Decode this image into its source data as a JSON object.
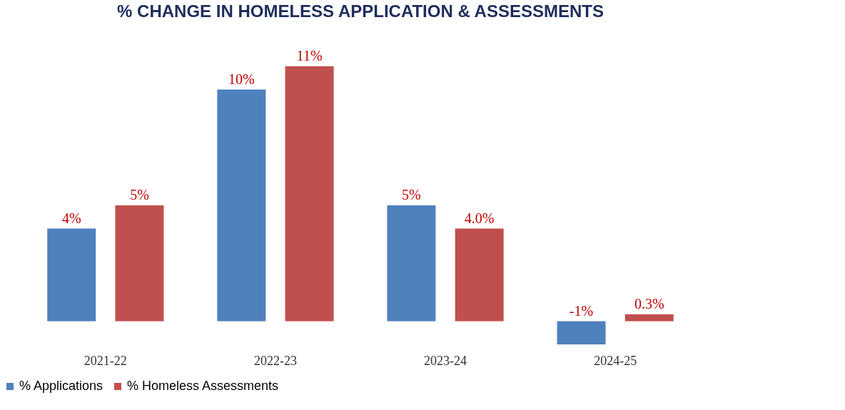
{
  "chart_data": {
    "type": "bar",
    "title": "% CHANGE IN HOMELESS APPLICATION & ASSESSMENTS",
    "categories": [
      "2021-22",
      "2022-23",
      "2023-24",
      "2024-25"
    ],
    "series": [
      {
        "name": "% Applications",
        "color": "#4f81bd",
        "values": [
          4,
          10,
          5,
          -1
        ],
        "value_labels": [
          "4%",
          "10%",
          "5%",
          "-1%"
        ]
      },
      {
        "name": "% Homeless Assessments",
        "color": "#c0504d",
        "values": [
          5,
          11,
          4.0,
          0.3
        ],
        "value_labels": [
          "5%",
          "11%",
          "4.0%",
          "0.3%"
        ]
      }
    ],
    "legend": "bottom",
    "grid": false
  }
}
